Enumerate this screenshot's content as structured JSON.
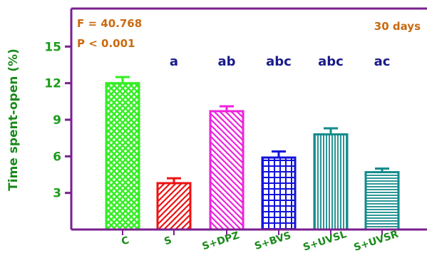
{
  "chart_data": {
    "type": "bar",
    "title": "",
    "xlabel": "",
    "ylabel": "Time spent-open (%)",
    "ylim": [
      0,
      18
    ],
    "yticks": [
      3,
      6,
      9,
      12,
      15
    ],
    "grid": false,
    "categories": [
      "C",
      "S",
      "S+DPZ",
      "S+BVS",
      "S+UVSL",
      "S+UVSR"
    ],
    "values": [
      12.0,
      3.8,
      9.7,
      5.9,
      7.8,
      4.7
    ],
    "errors": [
      0.5,
      0.4,
      0.4,
      0.5,
      0.5,
      0.3
    ],
    "sig_labels": [
      "",
      "a",
      "ab",
      "abc",
      "abc",
      "ac"
    ],
    "annotations": {
      "f_stat": "F = 40.768",
      "p_value": "P < 0.001",
      "period": "30 days"
    }
  },
  "colors": {
    "axis": "#7a1f8f",
    "tick_label": "#1a9e1a",
    "ylabel": "#1a8a1a",
    "x_label": "#1a8a1a",
    "annotation": "#c96a10",
    "sig_label": "#1a1a8a",
    "bars": [
      "#33ee22",
      "#ee1111",
      "#ee22dd",
      "#1111dd",
      "#138a8a",
      "#138a8a"
    ],
    "patterns": [
      "crosshatch",
      "diag-right",
      "diag-left",
      "grid",
      "vertical",
      "horizontal"
    ]
  }
}
